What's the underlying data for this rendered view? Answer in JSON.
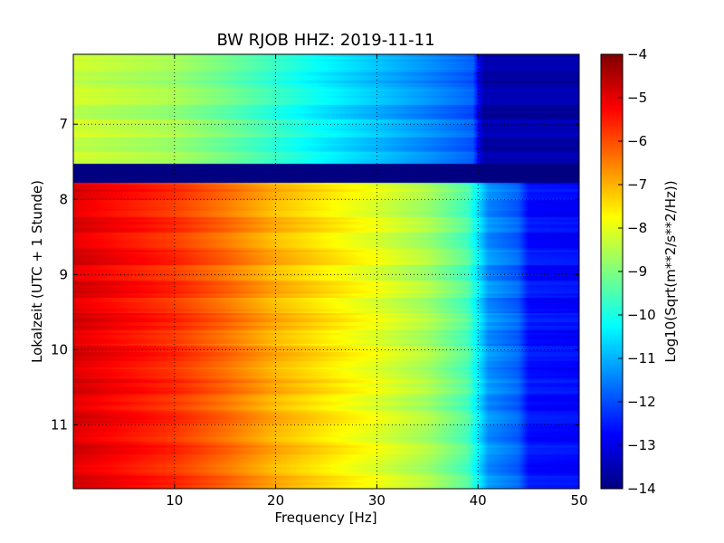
{
  "chart_data": {
    "type": "heatmap",
    "title": "BW RJOB HHZ: 2019-11-11",
    "xlabel": "Frequency [Hz]",
    "ylabel": "Lokalzeit (UTC + 1 Stunde)",
    "xlim": [
      0,
      50
    ],
    "ylim": [
      6.07,
      11.85
    ],
    "y_inverted": true,
    "x_ticks": [
      10,
      20,
      30,
      40,
      50
    ],
    "x_tick_labels": [
      "10",
      "20",
      "30",
      "40",
      "50"
    ],
    "y_ticks": [
      7,
      8,
      9,
      10,
      11
    ],
    "y_tick_labels": [
      "7",
      "8",
      "9",
      "10",
      "11"
    ],
    "grid": true,
    "colormap": "jet",
    "colorbar": {
      "label": "Log10(Sqrt(m**2/s**2/Hz))",
      "range": [
        -14,
        -4
      ],
      "ticks": [
        -4,
        -5,
        -6,
        -7,
        -8,
        -9,
        -10,
        -11,
        -12,
        -13,
        -14
      ],
      "tick_labels": [
        "−4",
        "−5",
        "−6",
        "−7",
        "−8",
        "−9",
        "−10",
        "−11",
        "−12",
        "−13",
        "−14"
      ]
    },
    "freq_profile_before_gap": {
      "freq_hz": [
        0,
        5,
        10,
        15,
        20,
        25,
        30,
        35,
        39.5,
        40.5,
        45,
        50
      ],
      "level": [
        -8.3,
        -8.5,
        -8.7,
        -9.2,
        -9.8,
        -10.4,
        -10.9,
        -11.4,
        -11.9,
        -13.6,
        -13.6,
        -13.6
      ]
    },
    "data_gap": {
      "start": 7.53,
      "end": 7.78,
      "level": -14
    },
    "freq_profile_after_gap": {
      "freq_hz": [
        0,
        5,
        10,
        15,
        20,
        25,
        30,
        35,
        39,
        41,
        44,
        45,
        50
      ],
      "level": [
        -4.9,
        -5.3,
        -5.7,
        -6.3,
        -7.0,
        -7.5,
        -8.0,
        -8.6,
        -9.5,
        -11.3,
        -11.8,
        -12.6,
        -12.7
      ]
    }
  }
}
